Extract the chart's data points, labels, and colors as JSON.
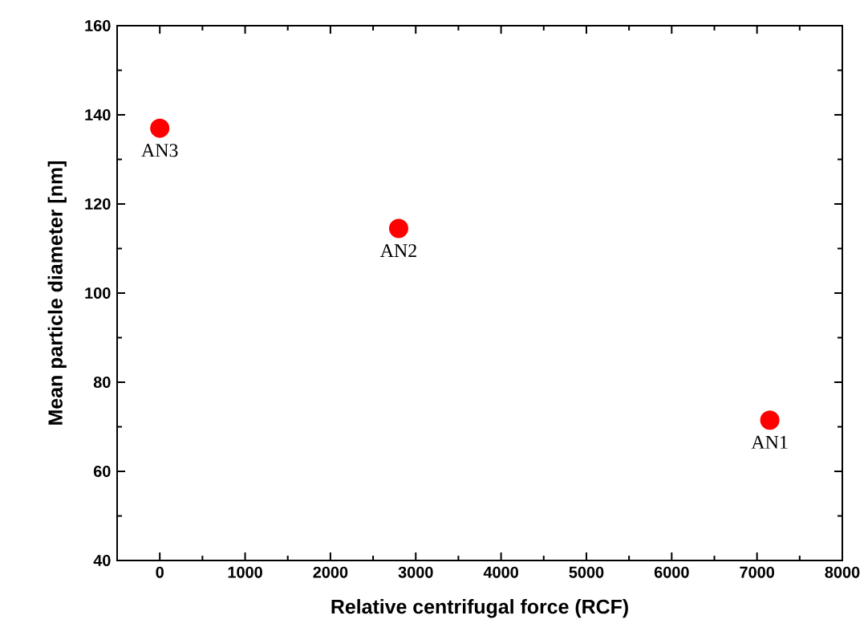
{
  "chart_data": {
    "type": "scatter",
    "xlabel": "Relative centrifugal force (RCF)",
    "ylabel": "Mean particle diameter [nm]",
    "x": [
      0,
      2800,
      7150
    ],
    "series": [
      {
        "color": "#ff0000",
        "values": [
          137,
          114.5,
          71.5
        ]
      }
    ],
    "marker": "circle",
    "xlim": [
      -500,
      8000
    ],
    "xticks": [
      0,
      1000,
      2000,
      3000,
      4000,
      5000,
      6000,
      7000,
      8000
    ],
    "ylim": [
      40,
      160
    ],
    "yticks": [
      40,
      60,
      80,
      100,
      120,
      140,
      160
    ],
    "annotations": [
      {
        "text": "AN3",
        "x": 0,
        "y": 137
      },
      {
        "text": "AN2",
        "x": 2800,
        "y": 114.5
      },
      {
        "text": "AN1",
        "x": 7150,
        "y": 71.5
      }
    ]
  }
}
